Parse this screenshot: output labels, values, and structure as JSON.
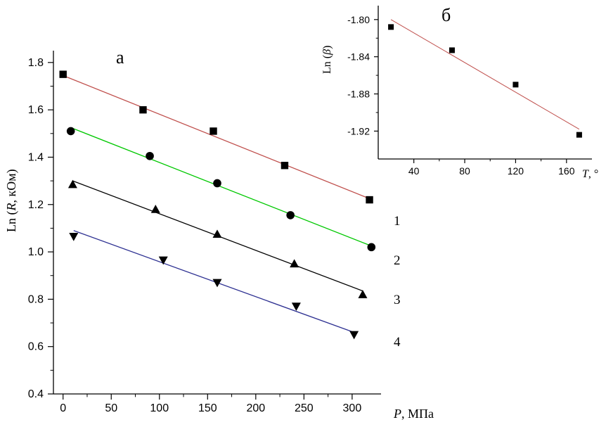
{
  "chart_data": [
    {
      "type": "scatter",
      "panel_label": "а",
      "xlabel": "P,  МПа",
      "xlabel_var": "P",
      "xlabel_unit": ",  МПа",
      "ylabel_prefix": "Ln (",
      "ylabel_var": "R",
      "ylabel_suffix": ",  кОм)",
      "xlim": [
        -10,
        330
      ],
      "ylim": [
        0.4,
        1.85
      ],
      "xticks": [
        0,
        50,
        100,
        150,
        200,
        250,
        300
      ],
      "yticks": [
        0.4,
        0.6,
        0.8,
        1.0,
        1.2,
        1.4,
        1.6,
        1.8
      ],
      "xtick_labels": [
        "0",
        "50",
        "100",
        "150",
        "200",
        "250",
        "300"
      ],
      "ytick_labels": [
        "0.4",
        "0.6",
        "0.8",
        "1.0",
        "1.2",
        "1.4",
        "1.6",
        "1.8"
      ],
      "grid": false,
      "series": [
        {
          "label": "1",
          "marker": "square",
          "line_color": "#c0504d",
          "points": [
            [
              0,
              1.75
            ],
            [
              83,
              1.6
            ],
            [
              156,
              1.51
            ],
            [
              230,
              1.365
            ],
            [
              318,
              1.22
            ]
          ],
          "fit": [
            [
              0,
              1.745
            ],
            [
              318,
              1.225
            ]
          ]
        },
        {
          "label": "2",
          "marker": "circle",
          "line_color": "#00c800",
          "points": [
            [
              8,
              1.51
            ],
            [
              90,
              1.405
            ],
            [
              160,
              1.29
            ],
            [
              236,
              1.155
            ],
            [
              320,
              1.02
            ]
          ],
          "fit": [
            [
              8,
              1.525
            ],
            [
              320,
              1.025
            ]
          ]
        },
        {
          "label": "3",
          "marker": "triangle-up",
          "line_color": "#000000",
          "points": [
            [
              10,
              1.285
            ],
            [
              96,
              1.18
            ],
            [
              160,
              1.075
            ],
            [
              240,
              0.95
            ],
            [
              311,
              0.82
            ]
          ],
          "fit": [
            [
              10,
              1.3
            ],
            [
              311,
              0.835
            ]
          ]
        },
        {
          "label": "4",
          "marker": "triangle-down",
          "line_color": "#2e3192",
          "points": [
            [
              11,
              1.065
            ],
            [
              104,
              0.965
            ],
            [
              160,
              0.87
            ],
            [
              242,
              0.77
            ],
            [
              302,
              0.65
            ]
          ],
          "fit": [
            [
              11,
              1.09
            ],
            [
              302,
              0.66
            ]
          ]
        }
      ]
    },
    {
      "type": "scatter",
      "panel_label": "б",
      "xlabel_var": "T",
      "xlabel_unit": ",  °",
      "ylabel_prefix": "Ln (",
      "ylabel_var": "β",
      "ylabel_suffix": ")",
      "xlim": [
        12,
        180
      ],
      "ylim": [
        -1.95,
        -1.785
      ],
      "xticks": [
        40,
        80,
        120,
        160
      ],
      "yticks": [
        -1.92,
        -1.88,
        -1.84,
        -1.8
      ],
      "xtick_labels": [
        "40",
        "80",
        "120",
        "160"
      ],
      "ytick_labels": [
        "-1.92",
        "-1.88",
        "-1.84",
        "-1.80"
      ],
      "grid": false,
      "series": [
        {
          "marker": "square",
          "line_color": "#c0504d",
          "points": [
            [
              22,
              -1.808
            ],
            [
              70,
              -1.833
            ],
            [
              120,
              -1.87
            ],
            [
              170,
              -1.924
            ]
          ],
          "fit": [
            [
              22,
              -1.8
            ],
            [
              170,
              -1.918
            ]
          ]
        }
      ]
    }
  ]
}
